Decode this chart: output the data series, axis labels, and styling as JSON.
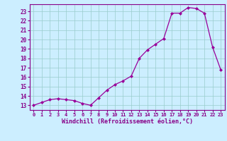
{
  "x": [
    0,
    1,
    2,
    3,
    4,
    5,
    6,
    7,
    8,
    9,
    10,
    11,
    12,
    13,
    14,
    15,
    16,
    17,
    18,
    19,
    20,
    21,
    22,
    23
  ],
  "y": [
    13.0,
    13.3,
    13.6,
    13.7,
    13.6,
    13.5,
    13.2,
    13.0,
    13.8,
    14.6,
    15.2,
    15.6,
    16.1,
    18.0,
    18.9,
    19.5,
    20.1,
    22.8,
    22.8,
    23.4,
    23.3,
    22.8,
    19.2,
    16.8
  ],
  "line_color": "#990099",
  "marker": "D",
  "marker_size": 2.5,
  "bg_color": "#cceeff",
  "grid_color": "#99cccc",
  "xlabel": "Windchill (Refroidissement éolien,°C)",
  "xlim": [
    -0.5,
    23.5
  ],
  "ylim": [
    12.5,
    23.75
  ],
  "yticks": [
    13,
    14,
    15,
    16,
    17,
    18,
    19,
    20,
    21,
    22,
    23
  ],
  "xticks": [
    0,
    1,
    2,
    3,
    4,
    5,
    6,
    7,
    8,
    9,
    10,
    11,
    12,
    13,
    14,
    15,
    16,
    17,
    18,
    19,
    20,
    21,
    22,
    23
  ],
  "tick_color": "#880088",
  "spine_color": "#880088",
  "label_color": "#880088"
}
